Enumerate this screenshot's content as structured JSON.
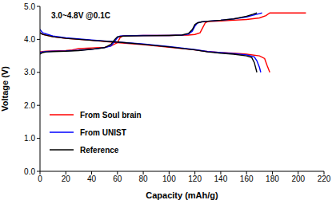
{
  "chart_data": {
    "type": "line",
    "annotation": "3.0~4.8V @0.1C",
    "x_label": "Capacity (mAh/g)",
    "y_label": "Voltage (V)",
    "xlim": [
      0,
      220
    ],
    "xticks": [
      0,
      20,
      40,
      60,
      80,
      100,
      120,
      140,
      160,
      180,
      200,
      220
    ],
    "ylim": [
      0,
      5
    ],
    "yticks": [
      {
        "value": 0,
        "label": "0.0"
      },
      {
        "value": 1,
        "label": "1.0"
      },
      {
        "value": 2,
        "label": "2.0"
      },
      {
        "value": 3,
        "label": "3.0"
      },
      {
        "value": 4,
        "label": "4.0"
      },
      {
        "value": 5,
        "label": "5.0"
      }
    ],
    "grid": false,
    "legend": "lower left",
    "marker": "none",
    "line_style": "solid",
    "series": [
      {
        "name": "From Soul brain",
        "color": "#ff0000",
        "curves": [
          {
            "x": [
              0,
              2,
              5,
              10,
              20,
              25,
              30,
              40,
              50,
              55,
              60,
              62,
              64,
              70,
              80,
              100,
              115,
              120,
              124,
              126,
              128,
              130,
              140,
              150,
              160,
              170,
              175,
              178,
              190,
              206
            ],
            "values": [
              3.62,
              3.63,
              3.64,
              3.65,
              3.66,
              3.68,
              3.72,
              3.74,
              3.76,
              3.8,
              3.9,
              4.05,
              4.1,
              4.11,
              4.12,
              4.12,
              4.13,
              4.15,
              4.2,
              4.35,
              4.5,
              4.54,
              4.56,
              4.58,
              4.6,
              4.65,
              4.72,
              4.8,
              4.8,
              4.8
            ]
          },
          {
            "x": [
              0,
              2,
              10,
              20,
              40,
              60,
              80,
              100,
              120,
              130,
              140,
              150,
              160,
              170,
              174,
              176,
              178
            ],
            "values": [
              4.2,
              4.15,
              4.08,
              4.03,
              3.97,
              3.9,
              3.84,
              3.76,
              3.68,
              3.63,
              3.6,
              3.58,
              3.55,
              3.5,
              3.42,
              3.2,
              3.0
            ]
          }
        ]
      },
      {
        "name": "From UNIST",
        "color": "#0000ff",
        "curves": [
          {
            "x": [
              0,
              2,
              5,
              10,
              20,
              30,
              40,
              50,
              55,
              58,
              60,
              62,
              65,
              80,
              100,
              110,
              115,
              118,
              120,
              122,
              125,
              130,
              140,
              150,
              160,
              165,
              170,
              172
            ],
            "values": [
              3.6,
              3.62,
              3.63,
              3.64,
              3.65,
              3.67,
              3.7,
              3.75,
              3.8,
              3.95,
              4.05,
              4.1,
              4.11,
              4.12,
              4.12,
              4.13,
              4.16,
              4.25,
              4.4,
              4.5,
              4.53,
              4.55,
              4.58,
              4.62,
              4.68,
              4.73,
              4.78,
              4.8
            ]
          },
          {
            "x": [
              0,
              2,
              10,
              20,
              40,
              60,
              80,
              100,
              120,
              130,
              140,
              150,
              160,
              166,
              168,
              170,
              171
            ],
            "values": [
              4.3,
              4.2,
              4.1,
              4.05,
              3.98,
              3.92,
              3.86,
              3.78,
              3.69,
              3.63,
              3.6,
              3.57,
              3.53,
              3.47,
              3.35,
              3.15,
              3.0
            ]
          }
        ]
      },
      {
        "name": "Reference",
        "color": "#000000",
        "curves": [
          {
            "x": [
              0,
              2,
              5,
              10,
              20,
              30,
              40,
              50,
              55,
              58,
              60,
              65,
              80,
              100,
              110,
              115,
              118,
              120,
              122,
              125,
              130,
              140,
              150,
              160,
              165,
              168
            ],
            "values": [
              3.55,
              3.6,
              3.62,
              3.63,
              3.64,
              3.66,
              3.7,
              3.75,
              3.85,
              4.0,
              4.08,
              4.1,
              4.11,
              4.12,
              4.13,
              4.18,
              4.3,
              4.45,
              4.5,
              4.53,
              4.55,
              4.58,
              4.62,
              4.7,
              4.76,
              4.8
            ]
          },
          {
            "x": [
              0,
              2,
              10,
              20,
              40,
              60,
              80,
              100,
              120,
              130,
              140,
              150,
              160,
              164,
              166,
              168
            ],
            "values": [
              4.2,
              4.15,
              4.08,
              4.03,
              3.97,
              3.92,
              3.85,
              3.77,
              3.68,
              3.62,
              3.58,
              3.55,
              3.5,
              3.45,
              3.3,
              3.0
            ]
          }
        ]
      }
    ]
  }
}
